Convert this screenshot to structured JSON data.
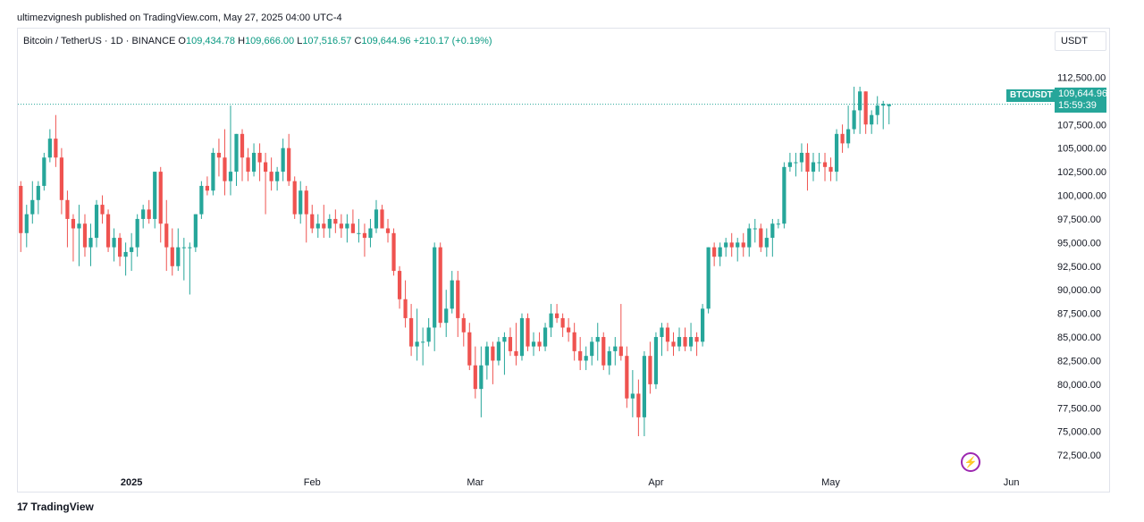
{
  "publisher_line": "ultimezvignesh published on TradingView.com, May 27, 2025 04:00 UTC-4",
  "legend": {
    "symbol": "Bitcoin / TetherUS · 1D · BINANCE",
    "o_label": "O",
    "o_value": "109,434.78",
    "h_label": "H",
    "h_value": "109,666.00",
    "l_label": "L",
    "l_value": "107,516.57",
    "c_label": "C",
    "c_value": "109,644.96",
    "change": "+210.17 (+0.19%)"
  },
  "currency": "USDT",
  "last_price": {
    "ticker": "BTCUSDT",
    "price": "109,644.96",
    "countdown": "15:59:39"
  },
  "footer": {
    "brand": "TradingView",
    "mark": "17"
  },
  "colors": {
    "up": "#26a69a",
    "down": "#ef5350",
    "wick_up": "#26a69a",
    "wick_down": "#ef5350",
    "accent": "#9c27b0"
  },
  "chart_data": {
    "type": "candlestick",
    "price_axis_ticks": [
      "112,500.00",
      "110,000.00",
      "107,500.00",
      "105,000.00",
      "102,500.00",
      "100,000.00",
      "97,500.00",
      "95,000.00",
      "92,500.00",
      "90,000.00",
      "87,500.00",
      "85,000.00",
      "82,500.00",
      "80,000.00",
      "77,500.00",
      "75,000.00",
      "72,500.00"
    ],
    "price_axis_values": [
      112500,
      110000,
      107500,
      105000,
      102500,
      100000,
      97500,
      95000,
      92500,
      90000,
      87500,
      85000,
      82500,
      80000,
      77500,
      75000,
      72500
    ],
    "ylim": [
      71000,
      115000
    ],
    "time_axis": [
      {
        "label": "2025",
        "index": 19,
        "bold": true
      },
      {
        "label": "Feb",
        "index": 50
      },
      {
        "label": "Mar",
        "index": 78
      },
      {
        "label": "Apr",
        "index": 109
      },
      {
        "label": "May",
        "index": 139
      },
      {
        "label": "Jun",
        "index": 170
      }
    ],
    "candles": [
      [
        101000,
        101500,
        94000,
        96000
      ],
      [
        96000,
        99000,
        94500,
        98000
      ],
      [
        98000,
        101500,
        97000,
        99500
      ],
      [
        99500,
        101500,
        98000,
        101000
      ],
      [
        101000,
        104500,
        100500,
        104000
      ],
      [
        104000,
        107000,
        103500,
        106000
      ],
      [
        106000,
        108500,
        103000,
        104000
      ],
      [
        104000,
        105000,
        98000,
        99500
      ],
      [
        99500,
        100500,
        94500,
        97500
      ],
      [
        97500,
        98000,
        93000,
        96500
      ],
      [
        96500,
        99000,
        92500,
        97000
      ],
      [
        97000,
        98000,
        93500,
        94500
      ],
      [
        94500,
        97000,
        92500,
        95500
      ],
      [
        95500,
        99500,
        94500,
        99000
      ],
      [
        99000,
        100000,
        97000,
        98000
      ],
      [
        98000,
        98500,
        94000,
        94500
      ],
      [
        94500,
        96500,
        93000,
        95500
      ],
      [
        95500,
        96000,
        92500,
        93500
      ],
      [
        93500,
        95000,
        91500,
        94000
      ],
      [
        94000,
        96000,
        92000,
        94500
      ],
      [
        94500,
        98000,
        93500,
        97500
      ],
      [
        97500,
        99000,
        96500,
        98500
      ],
      [
        98500,
        99500,
        97000,
        97500
      ],
      [
        97500,
        102500,
        96500,
        102500
      ],
      [
        102500,
        103000,
        95000,
        97000
      ],
      [
        97000,
        99500,
        92000,
        94500
      ],
      [
        94500,
        96500,
        91500,
        92500
      ],
      [
        92500,
        96500,
        92000,
        94500
      ],
      [
        94500,
        95500,
        91000,
        94500
      ],
      [
        94500,
        95000,
        89500,
        94500
      ],
      [
        94500,
        98000,
        94000,
        98000
      ],
      [
        98000,
        101500,
        97500,
        101000
      ],
      [
        101000,
        102000,
        100000,
        100500
      ],
      [
        100500,
        105000,
        100000,
        104500
      ],
      [
        104500,
        106000,
        102000,
        104000
      ],
      [
        104000,
        107000,
        100000,
        101500
      ],
      [
        101500,
        109500,
        100000,
        102500
      ],
      [
        102500,
        106500,
        101000,
        106500
      ],
      [
        106500,
        107000,
        101500,
        104000
      ],
      [
        104000,
        105000,
        101500,
        102500
      ],
      [
        102500,
        105500,
        102000,
        104500
      ],
      [
        104500,
        105500,
        101500,
        103500
      ],
      [
        103500,
        104500,
        98000,
        102500
      ],
      [
        102500,
        104000,
        100500,
        101500
      ],
      [
        101500,
        103000,
        100500,
        102500
      ],
      [
        102500,
        106000,
        101500,
        105000
      ],
      [
        105000,
        106500,
        101000,
        101500
      ],
      [
        101500,
        102000,
        97500,
        98000
      ],
      [
        98000,
        101500,
        97000,
        100500
      ],
      [
        100500,
        101000,
        95000,
        98000
      ],
      [
        98000,
        99000,
        96000,
        96500
      ],
      [
        96500,
        98000,
        95500,
        97000
      ],
      [
        97000,
        99000,
        95500,
        96500
      ],
      [
        96500,
        98000,
        95500,
        97500
      ],
      [
        97500,
        98500,
        96000,
        97000
      ],
      [
        97000,
        98000,
        95500,
        96500
      ],
      [
        96500,
        98000,
        95000,
        97000
      ],
      [
        97000,
        98500,
        96000,
        96000
      ],
      [
        96000,
        97500,
        95000,
        96000
      ],
      [
        96000,
        97000,
        93500,
        95500
      ],
      [
        95500,
        97500,
        94500,
        96500
      ],
      [
        96500,
        99500,
        96000,
        98500
      ],
      [
        98500,
        99000,
        96500,
        96500
      ],
      [
        96500,
        97500,
        95000,
        96000
      ],
      [
        96000,
        96500,
        91500,
        92000
      ],
      [
        92000,
        92500,
        88000,
        89000
      ],
      [
        89000,
        91000,
        86000,
        87000
      ],
      [
        87000,
        88500,
        83000,
        84000
      ],
      [
        84000,
        88000,
        82500,
        84500
      ],
      [
        84500,
        86000,
        82000,
        84500
      ],
      [
        84500,
        87000,
        84000,
        86000
      ],
      [
        86000,
        95000,
        83500,
        94500
      ],
      [
        94500,
        95000,
        86000,
        86500
      ],
      [
        86500,
        90000,
        85000,
        88000
      ],
      [
        88000,
        92000,
        87500,
        91000
      ],
      [
        91000,
        92000,
        85000,
        87000
      ],
      [
        87000,
        87500,
        84000,
        85500
      ],
      [
        85500,
        86500,
        81500,
        82000
      ],
      [
        82000,
        84000,
        78500,
        79500
      ],
      [
        79500,
        84000,
        76500,
        82000
      ],
      [
        82000,
        84500,
        80500,
        84000
      ],
      [
        84000,
        84500,
        80000,
        82500
      ],
      [
        82500,
        85000,
        82000,
        84500
      ],
      [
        84500,
        85500,
        81000,
        85000
      ],
      [
        85000,
        86000,
        83000,
        83500
      ],
      [
        83500,
        86500,
        82000,
        83000
      ],
      [
        83000,
        87500,
        82500,
        87000
      ],
      [
        87000,
        87500,
        83500,
        84000
      ],
      [
        84000,
        85500,
        83000,
        84500
      ],
      [
        84500,
        85500,
        83500,
        84000
      ],
      [
        84000,
        86500,
        83500,
        86000
      ],
      [
        86000,
        88500,
        85000,
        87500
      ],
      [
        87500,
        88500,
        86500,
        87000
      ],
      [
        87000,
        87500,
        85000,
        86000
      ],
      [
        86000,
        87000,
        84500,
        85500
      ],
      [
        85500,
        86500,
        82500,
        83500
      ],
      [
        83500,
        85000,
        81500,
        82500
      ],
      [
        82500,
        84000,
        81500,
        83000
      ],
      [
        83000,
        85000,
        82000,
        84500
      ],
      [
        84500,
        86500,
        82500,
        85000
      ],
      [
        85000,
        85500,
        81500,
        82000
      ],
      [
        82000,
        84000,
        81000,
        83500
      ],
      [
        83500,
        85000,
        82000,
        84000
      ],
      [
        84000,
        88500,
        82500,
        83000
      ],
      [
        83000,
        84000,
        77500,
        78500
      ],
      [
        78500,
        81500,
        76500,
        79000
      ],
      [
        79000,
        80500,
        74500,
        76500
      ],
      [
        76500,
        83500,
        74500,
        83000
      ],
      [
        83000,
        84500,
        79000,
        80000
      ],
      [
        80000,
        85500,
        79500,
        85000
      ],
      [
        85000,
        86500,
        83000,
        86000
      ],
      [
        86000,
        86500,
        83500,
        84500
      ],
      [
        84500,
        85500,
        83000,
        84000
      ],
      [
        84000,
        86000,
        83500,
        85000
      ],
      [
        85000,
        86000,
        83500,
        84000
      ],
      [
        84000,
        86500,
        83500,
        85000
      ],
      [
        85000,
        85500,
        83000,
        84500
      ],
      [
        84500,
        88500,
        84000,
        88000
      ],
      [
        88000,
        94500,
        87500,
        94500
      ],
      [
        94500,
        95000,
        92500,
        93500
      ],
      [
        93500,
        95000,
        92500,
        94500
      ],
      [
        94500,
        95500,
        93500,
        95000
      ],
      [
        95000,
        96000,
        93500,
        94500
      ],
      [
        94500,
        95500,
        93000,
        95000
      ],
      [
        95000,
        96000,
        93500,
        94500
      ],
      [
        94500,
        97000,
        93500,
        96500
      ],
      [
        96500,
        97500,
        95000,
        96500
      ],
      [
        96500,
        97000,
        94000,
        94500
      ],
      [
        94500,
        96500,
        93500,
        95500
      ],
      [
        95500,
        97500,
        93500,
        97000
      ],
      [
        97000,
        97500,
        96500,
        97000
      ],
      [
        97000,
        103500,
        96500,
        103000
      ],
      [
        103000,
        104500,
        102500,
        103500
      ],
      [
        103500,
        104500,
        102000,
        103500
      ],
      [
        103500,
        105500,
        102500,
        104500
      ],
      [
        104500,
        105500,
        100500,
        102500
      ],
      [
        102500,
        104500,
        101500,
        103500
      ],
      [
        103500,
        104500,
        102500,
        103500
      ],
      [
        103500,
        104500,
        101500,
        103000
      ],
      [
        103000,
        104000,
        101500,
        102500
      ],
      [
        102500,
        107000,
        101500,
        106500
      ],
      [
        106500,
        107500,
        104500,
        105500
      ],
      [
        105500,
        109500,
        105000,
        107000
      ],
      [
        107000,
        111500,
        106500,
        109000
      ],
      [
        109000,
        111500,
        106500,
        111000
      ],
      [
        111000,
        111000,
        106500,
        107500
      ],
      [
        107500,
        109000,
        106500,
        108500
      ],
      [
        108500,
        110500,
        107500,
        109500
      ],
      [
        109500,
        110000,
        107000,
        109700
      ],
      [
        109434.78,
        109666,
        107516.57,
        109644.96
      ]
    ]
  }
}
